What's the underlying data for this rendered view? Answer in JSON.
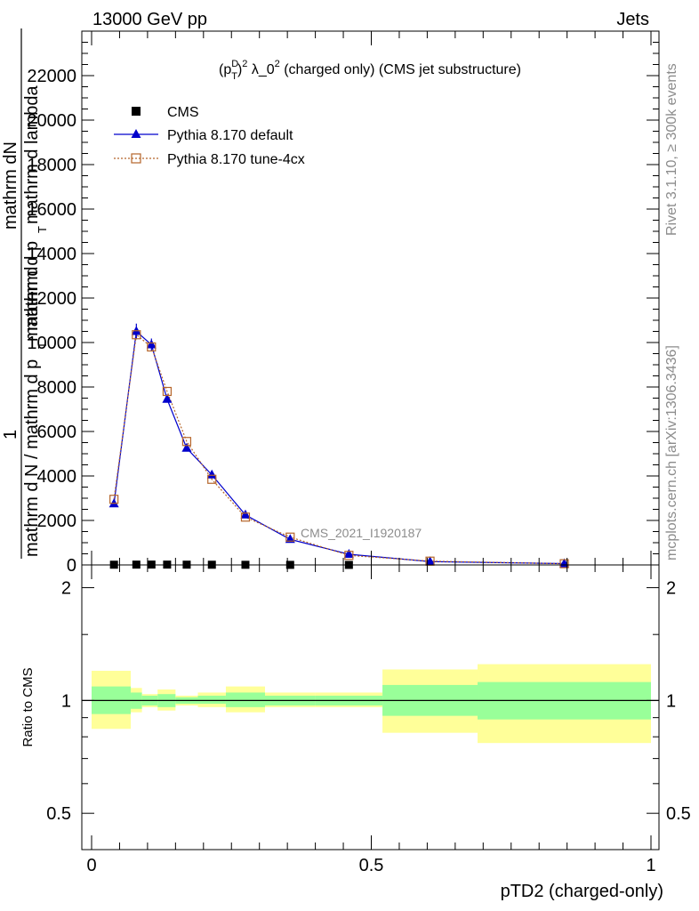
{
  "header": {
    "left": "13000 GeV pp",
    "right": "Jets"
  },
  "side": {
    "rivet": "Rivet 3.1.10, ≥ 300k events",
    "mcplots": "mcplots.cern.ch [arXiv:1306.3436]"
  },
  "watermark": "CMS_2021_I1920187",
  "chart_data": [
    {
      "type": "line",
      "title": "(p_T^D)^2 λ_0^2 (charged only) (CMS jet substructure)",
      "title_parts": {
        "base": "(p",
        "sup": "D",
        "sub": "T",
        "close": ")",
        "exp": "2",
        "rest": " λ_0",
        "exp2": "2",
        "tail": " (charged only) (CMS jet substructure)"
      },
      "ylabel_top": "mathrm dN",
      "ylabel_top2": "mathrm d p",
      "ylabel_top3": "mathrm d lambda",
      "ylabel_sub": "T",
      "ylabel_one": "1",
      "ylabel_bottom": "mathrm d N / mathrm d p",
      "ylabel_bottom_sub": "T",
      "ylabel_bottom_tail": "mathrm d",
      "xlim": [
        0,
        1
      ],
      "ylim": [
        0,
        24000
      ],
      "yticks": [
        0,
        2000,
        4000,
        6000,
        8000,
        10000,
        12000,
        14000,
        16000,
        18000,
        20000,
        22000
      ],
      "ytick_labels": [
        "0",
        "2000",
        "4000",
        "6000",
        "8000",
        "10000",
        "12000",
        "14000",
        "16000",
        "18000",
        "20000",
        "22000"
      ],
      "legend_position": "top-left",
      "series": [
        {
          "name": "CMS",
          "color": "#000000",
          "marker": "square",
          "x": [
            0.04,
            0.08,
            0.107,
            0.135,
            0.17,
            0.215,
            0.275,
            0.355,
            0.46
          ],
          "y": [
            10,
            14,
            16,
            15,
            12,
            9,
            6,
            3,
            1.5
          ]
        },
        {
          "name": "Pythia 8.170 default",
          "color": "#0000cc",
          "marker": "triangle",
          "x": [
            0.04,
            0.08,
            0.107,
            0.135,
            0.17,
            0.215,
            0.275,
            0.355,
            0.46,
            0.605,
            0.845
          ],
          "y": [
            2750,
            10500,
            9900,
            7450,
            5250,
            4050,
            2250,
            1150,
            480,
            150,
            60
          ],
          "err": [
            0,
            350,
            280,
            0,
            0,
            0,
            0,
            0,
            0,
            0,
            0
          ]
        },
        {
          "name": "Pythia 8.170 tune-4cx",
          "color": "#b5652a",
          "marker": "open-square",
          "x": [
            0.04,
            0.08,
            0.107,
            0.135,
            0.17,
            0.215,
            0.275,
            0.355,
            0.46,
            0.605,
            0.845
          ],
          "y": [
            2950,
            10350,
            9800,
            7800,
            5550,
            3850,
            2150,
            1250,
            430,
            170,
            55
          ]
        }
      ]
    },
    {
      "type": "area",
      "ylabel": "Ratio to CMS",
      "xlabel": "pTD2 (charged-only)",
      "xlim": [
        0,
        1
      ],
      "ylim": [
        0.4,
        2.3
      ],
      "log_y": true,
      "xticks": [
        0,
        0.5,
        1
      ],
      "xtick_labels": [
        "0",
        "0.5",
        "1"
      ],
      "yticks": [
        0.5,
        1,
        2
      ],
      "ytick_labels": [
        "0.5",
        "1",
        "2"
      ],
      "bands": {
        "bins": [
          0,
          0.07,
          0.09,
          0.118,
          0.15,
          0.19,
          0.24,
          0.31,
          0.4,
          0.52,
          0.69,
          1.0
        ],
        "inner_color": "#99ff99",
        "outer_color": "#ffff99",
        "inner_low": [
          0.92,
          0.95,
          0.97,
          0.96,
          0.98,
          0.98,
          0.96,
          0.97,
          0.97,
          0.91,
          0.89
        ],
        "inner_high": [
          1.09,
          1.05,
          1.03,
          1.04,
          1.02,
          1.03,
          1.05,
          1.03,
          1.03,
          1.1,
          1.12
        ],
        "outer_low": [
          0.84,
          0.93,
          0.96,
          0.94,
          0.97,
          0.96,
          0.93,
          0.96,
          0.96,
          0.82,
          0.77
        ],
        "outer_high": [
          1.2,
          1.08,
          1.04,
          1.07,
          1.03,
          1.05,
          1.09,
          1.05,
          1.05,
          1.21,
          1.25
        ]
      }
    }
  ]
}
